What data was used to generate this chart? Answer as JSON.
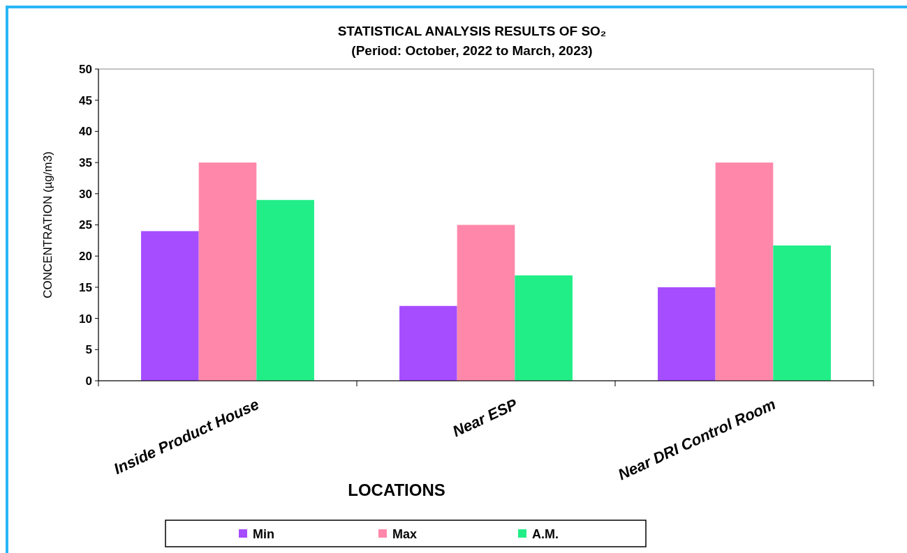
{
  "chart_data": {
    "type": "bar",
    "title": "STATISTICAL ANALYSIS RESULTS OF SO₂",
    "subtitle": "(Period: October, 2022 to March, 2023)",
    "xlabel": "LOCATIONS",
    "ylabel": "CONCENTRATION (µg/m3)",
    "categories": [
      "Inside Product House",
      "Near ESP",
      "Near DRI Control Room"
    ],
    "series": [
      {
        "name": "Min",
        "color": "#a64dff",
        "values": [
          24,
          12,
          15
        ]
      },
      {
        "name": "Max",
        "color": "#ff88aa",
        "values": [
          35,
          25,
          35
        ]
      },
      {
        "name": "A.M.",
        "color": "#22ee88",
        "values": [
          29,
          16.9,
          21.7
        ]
      }
    ],
    "ylim": [
      0,
      50
    ],
    "yticks": [
      0,
      5,
      10,
      15,
      20,
      25,
      30,
      35,
      40,
      45,
      50
    ],
    "grid": false,
    "legend": "bottom"
  }
}
